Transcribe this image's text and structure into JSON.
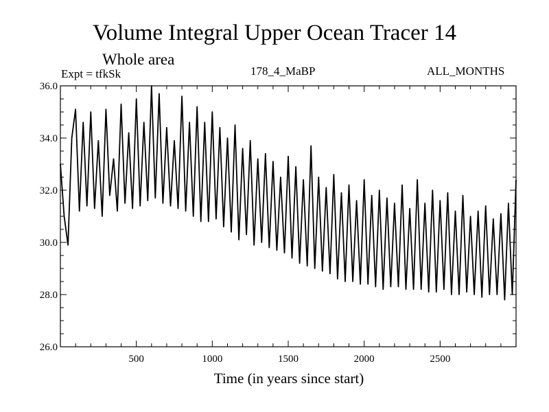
{
  "chart_data": {
    "type": "line",
    "title": "Volume Integral Upper Ocean Tracer 14",
    "subtitle": "Whole area",
    "annotations": {
      "experiment": "Expt = tfkSk",
      "run": "178_4_MaBP",
      "months": "ALL_MONTHS"
    },
    "xlabel": "Time (in years since start)",
    "ylabel": "",
    "xlim": [
      0,
      3000
    ],
    "ylim": [
      26.0,
      36.0
    ],
    "x_ticks": [
      500,
      1000,
      1500,
      2000,
      2500
    ],
    "x_tick_labels": [
      "500",
      "1000",
      "1500",
      "2000",
      "2500"
    ],
    "y_ticks": [
      26.0,
      28.0,
      30.0,
      32.0,
      34.0,
      36.0
    ],
    "y_tick_labels": [
      "26.0",
      "28.0",
      "30.0",
      "32.0",
      "34.0",
      "36.0"
    ],
    "grid": false,
    "series": [
      {
        "name": "Upper Ocean Tracer 14",
        "color": "#000000",
        "x": [
          0,
          25,
          50,
          75,
          100,
          125,
          150,
          175,
          200,
          225,
          250,
          275,
          300,
          325,
          350,
          375,
          400,
          425,
          450,
          475,
          500,
          525,
          550,
          575,
          600,
          625,
          650,
          675,
          700,
          725,
          750,
          775,
          800,
          825,
          850,
          875,
          900,
          925,
          950,
          975,
          1000,
          1025,
          1050,
          1075,
          1100,
          1125,
          1150,
          1175,
          1200,
          1225,
          1250,
          1275,
          1300,
          1325,
          1350,
          1375,
          1400,
          1425,
          1450,
          1475,
          1500,
          1525,
          1550,
          1575,
          1600,
          1625,
          1650,
          1675,
          1700,
          1725,
          1750,
          1775,
          1800,
          1825,
          1850,
          1875,
          1900,
          1925,
          1950,
          1975,
          2000,
          2025,
          2050,
          2075,
          2100,
          2125,
          2150,
          2175,
          2200,
          2225,
          2250,
          2275,
          2300,
          2325,
          2350,
          2375,
          2400,
          2425,
          2450,
          2475,
          2500,
          2525,
          2550,
          2575,
          2600,
          2625,
          2650,
          2675,
          2700,
          2725,
          2750,
          2775,
          2800,
          2825,
          2850,
          2875,
          2900,
          2925,
          2950,
          2975,
          3000
        ],
        "values": [
          33.0,
          31.0,
          29.9,
          34.0,
          35.1,
          31.2,
          34.6,
          31.4,
          35.0,
          31.3,
          33.9,
          31.0,
          35.1,
          31.8,
          33.2,
          31.2,
          35.3,
          31.5,
          34.2,
          31.3,
          35.5,
          31.4,
          34.6,
          31.6,
          36.0,
          31.7,
          35.7,
          31.5,
          34.4,
          31.4,
          33.9,
          31.3,
          35.6,
          31.2,
          34.6,
          31.0,
          35.2,
          30.8,
          34.6,
          30.8,
          35.0,
          30.9,
          34.4,
          30.6,
          34.0,
          30.4,
          34.5,
          30.1,
          33.6,
          30.3,
          33.9,
          29.9,
          33.2,
          30.0,
          33.4,
          29.8,
          33.1,
          29.7,
          32.5,
          29.6,
          33.3,
          29.4,
          32.9,
          29.2,
          32.4,
          29.1,
          33.7,
          29.0,
          32.5,
          28.9,
          32.1,
          28.8,
          32.6,
          28.6,
          31.9,
          28.5,
          32.2,
          28.5,
          31.6,
          28.4,
          32.4,
          28.4,
          31.8,
          28.3,
          32.0,
          28.2,
          31.7,
          28.3,
          31.5,
          28.3,
          32.2,
          28.2,
          31.3,
          28.2,
          32.4,
          28.2,
          31.5,
          28.1,
          32.0,
          28.1,
          31.6,
          28.2,
          31.9,
          28.0,
          31.2,
          28.0,
          31.8,
          28.1,
          31.0,
          28.0,
          31.2,
          27.9,
          31.4,
          28.0,
          30.9,
          28.0,
          31.1,
          27.8,
          31.5,
          28.0,
          32.4
        ]
      }
    ]
  }
}
